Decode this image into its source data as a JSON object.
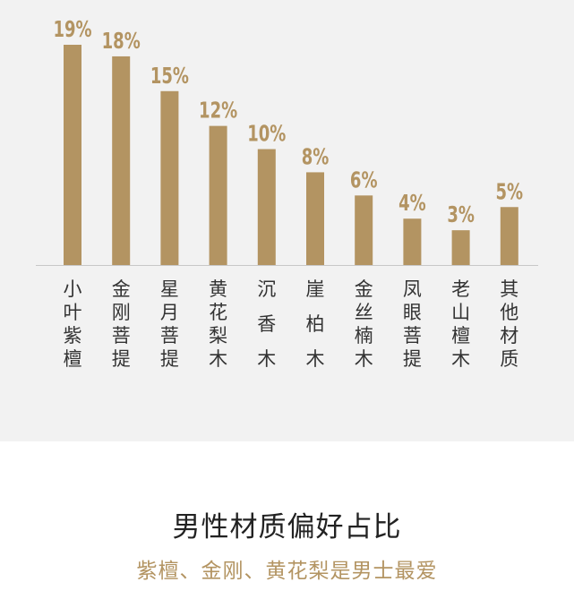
{
  "colors": {
    "bar": "#b39462",
    "label_value": "#b39462",
    "label_category": "#333333",
    "panel_background": "#f2f2f2",
    "baseline": "#c8c8c8"
  },
  "footer": {
    "title": "男性材质偏好占比",
    "subtitle": "紫檀、金刚、黄花梨是男士最爱"
  },
  "chart_data": {
    "type": "bar",
    "categories": [
      "小叶紫檀",
      "金刚菩提",
      "星月菩提",
      "黄花梨木",
      "沉香木",
      "崖柏木",
      "金丝楠木",
      "凤眼菩提",
      "老山檀木",
      "其他材质"
    ],
    "values": [
      19,
      18,
      15,
      12,
      10,
      8,
      6,
      4,
      3,
      5
    ],
    "value_labels": [
      "19%",
      "18%",
      "15%",
      "12%",
      "10%",
      "8%",
      "6%",
      "4%",
      "3%",
      "5%"
    ],
    "ylim": [
      0,
      19
    ],
    "grid": false,
    "legend": "none"
  }
}
